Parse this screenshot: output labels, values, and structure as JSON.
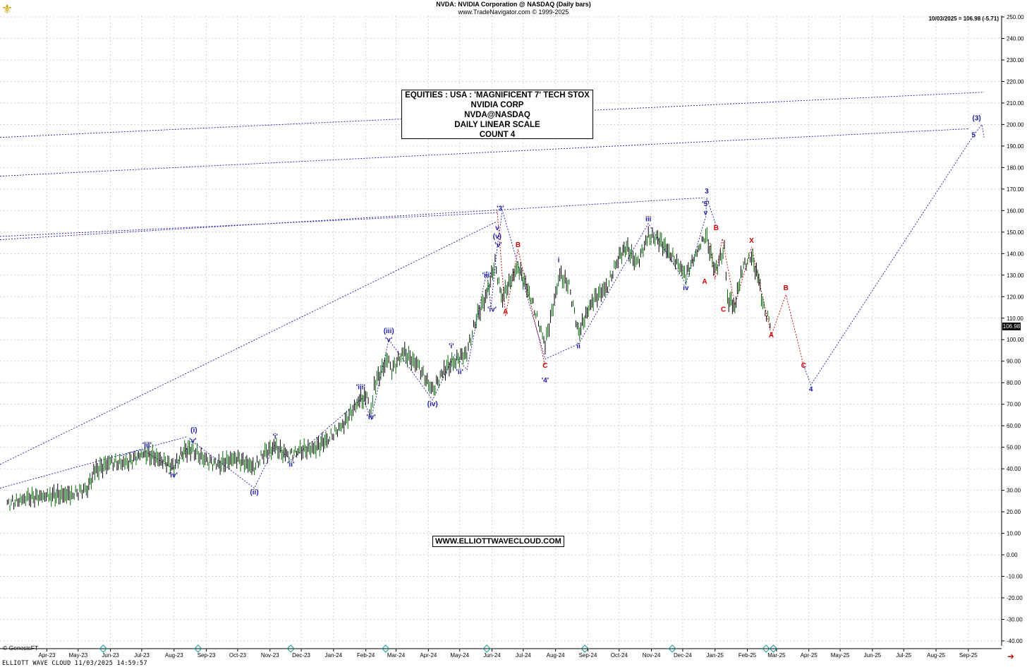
{
  "header": {
    "line1": "NVDA:  NVIDIA Corporation @ NASDAQ  (Daily bars)",
    "line2": "www.TradeNavigator.com © 1999-2025",
    "last_price": "10/03/2025 = 106.98 (-5.71)",
    "price_tag": "106.98"
  },
  "title_box": {
    "l1": "EQUITIES : USA : 'MAGNIFICENT 7' TECH STOX",
    "l2": "NVIDIA CORP",
    "l3": "NVDA@NASDAQ",
    "l4": "DAILY LINEAR SCALE",
    "l5": "COUNT 4"
  },
  "website": "WWW.ELLIOTTWAVECLOUD.COM",
  "footer": "ELLIOTT WAVE CLOUD   11/03/2025 14:59:57",
  "genesis": "© GenesisFT",
  "colors": {
    "blue": "#1a1aa8",
    "red": "#cc0000",
    "grid": "#c8c8c8",
    "price": "#000000",
    "up": "#0a6a0a"
  },
  "chart_data": {
    "type": "line",
    "ylim": [
      -40,
      250
    ],
    "y_ticks": [
      250,
      240,
      230,
      220,
      210,
      200,
      190,
      180,
      170,
      160,
      150,
      140,
      130,
      120,
      110,
      100,
      90,
      80,
      70,
      60,
      50,
      40,
      30,
      20,
      10,
      0,
      -10,
      -20,
      -30,
      -40
    ],
    "x_tick_labels": [
      "Apr-23",
      "May-23",
      "Jun-23",
      "Jul-23",
      "Aug-23",
      "Sep-23",
      "Oct-23",
      "Nov-23",
      "Dec-23",
      "Jan-24",
      "Feb-24",
      "Mar-24",
      "Apr-24",
      "May-24",
      "Jun-24",
      "Jul-24",
      "Aug-24",
      "Sep-24",
      "Oct-24",
      "Nov-24",
      "Dec-24",
      "Jan-25",
      "Feb-25",
      "Mar-25",
      "Apr-25",
      "May-25",
      "Jun-25",
      "Jul-25",
      "Aug-25",
      "Sep-25"
    ],
    "price_series": [
      [
        "2023-03-08",
        23.5
      ],
      [
        "2023-03-28",
        26.5
      ],
      [
        "2023-04-18",
        27.5
      ],
      [
        "2023-05-10",
        28.2
      ],
      [
        "2023-05-24",
        31
      ],
      [
        "2023-05-31",
        39
      ],
      [
        "2023-06-15",
        43
      ],
      [
        "2023-06-30",
        42.5
      ],
      [
        "2023-07-18",
        47.5
      ],
      [
        "2023-08-03",
        44
      ],
      [
        "2023-08-15",
        41
      ],
      [
        "2023-08-24",
        48
      ],
      [
        "2023-09-01",
        49
      ],
      [
        "2023-09-15",
        43.5
      ],
      [
        "2023-09-27",
        42
      ],
      [
        "2023-10-13",
        45
      ],
      [
        "2023-10-31",
        40.5
      ],
      [
        "2023-11-09",
        47
      ],
      [
        "2023-11-20",
        50
      ],
      [
        "2023-12-01",
        46
      ],
      [
        "2023-12-14",
        48.5
      ],
      [
        "2023-12-28",
        49.5
      ],
      [
        "2024-01-10",
        54
      ],
      [
        "2024-01-25",
        61
      ],
      [
        "2024-02-09",
        72
      ],
      [
        "2024-02-16",
        73
      ],
      [
        "2024-02-20",
        66
      ],
      [
        "2024-02-23",
        79
      ],
      [
        "2024-03-08",
        92
      ],
      [
        "2024-03-11",
        86
      ],
      [
        "2024-03-22",
        94
      ],
      [
        "2024-04-05",
        88
      ],
      [
        "2024-04-19",
        76
      ],
      [
        "2024-04-30",
        86
      ],
      [
        "2024-05-10",
        90
      ],
      [
        "2024-05-22",
        94
      ],
      [
        "2024-05-31",
        110
      ],
      [
        "2024-06-10",
        121
      ],
      [
        "2024-06-18",
        136
      ],
      [
        "2024-06-24",
        119
      ],
      [
        "2024-07-10",
        134
      ],
      [
        "2024-07-22",
        120
      ],
      [
        "2024-08-05",
        98
      ],
      [
        "2024-08-19",
        130
      ],
      [
        "2024-08-28",
        125
      ],
      [
        "2024-09-06",
        103
      ],
      [
        "2024-09-19",
        118
      ],
      [
        "2024-10-04",
        125
      ],
      [
        "2024-10-14",
        138
      ],
      [
        "2024-10-22",
        143
      ],
      [
        "2024-11-01",
        135
      ],
      [
        "2024-11-12",
        148
      ],
      [
        "2024-11-21",
        147
      ],
      [
        "2024-12-03",
        140
      ],
      [
        "2024-12-18",
        130
      ],
      [
        "2025-01-06",
        149
      ],
      [
        "2025-01-15",
        132
      ],
      [
        "2025-01-24",
        142
      ],
      [
        "2025-01-27",
        119
      ],
      [
        "2025-02-03",
        116
      ],
      [
        "2025-02-10",
        133
      ],
      [
        "2025-02-19",
        139
      ],
      [
        "2025-02-26",
        127
      ],
      [
        "2025-03-03",
        114
      ],
      [
        "2025-03-10",
        106.98
      ]
    ],
    "labels": {
      "blue": [
        "(i)",
        "'v'",
        "'iii'",
        "'iv'",
        "(ii)",
        "'i'",
        "'ii'",
        "'iii'",
        "'iv'",
        "'v'",
        "(iii)",
        "(iv)",
        "'i'",
        "'ii'",
        "'iii'",
        "'iv'",
        "'v'",
        "(v)",
        "v",
        "'3'",
        "'4'",
        "i",
        "ii",
        "iii",
        "iv",
        "v",
        "'5'",
        "3",
        "4",
        "5",
        "(3)"
      ],
      "red": [
        "A",
        "B",
        "C",
        "A",
        "B",
        "C",
        "A",
        "B",
        "X",
        "C"
      ]
    }
  }
}
